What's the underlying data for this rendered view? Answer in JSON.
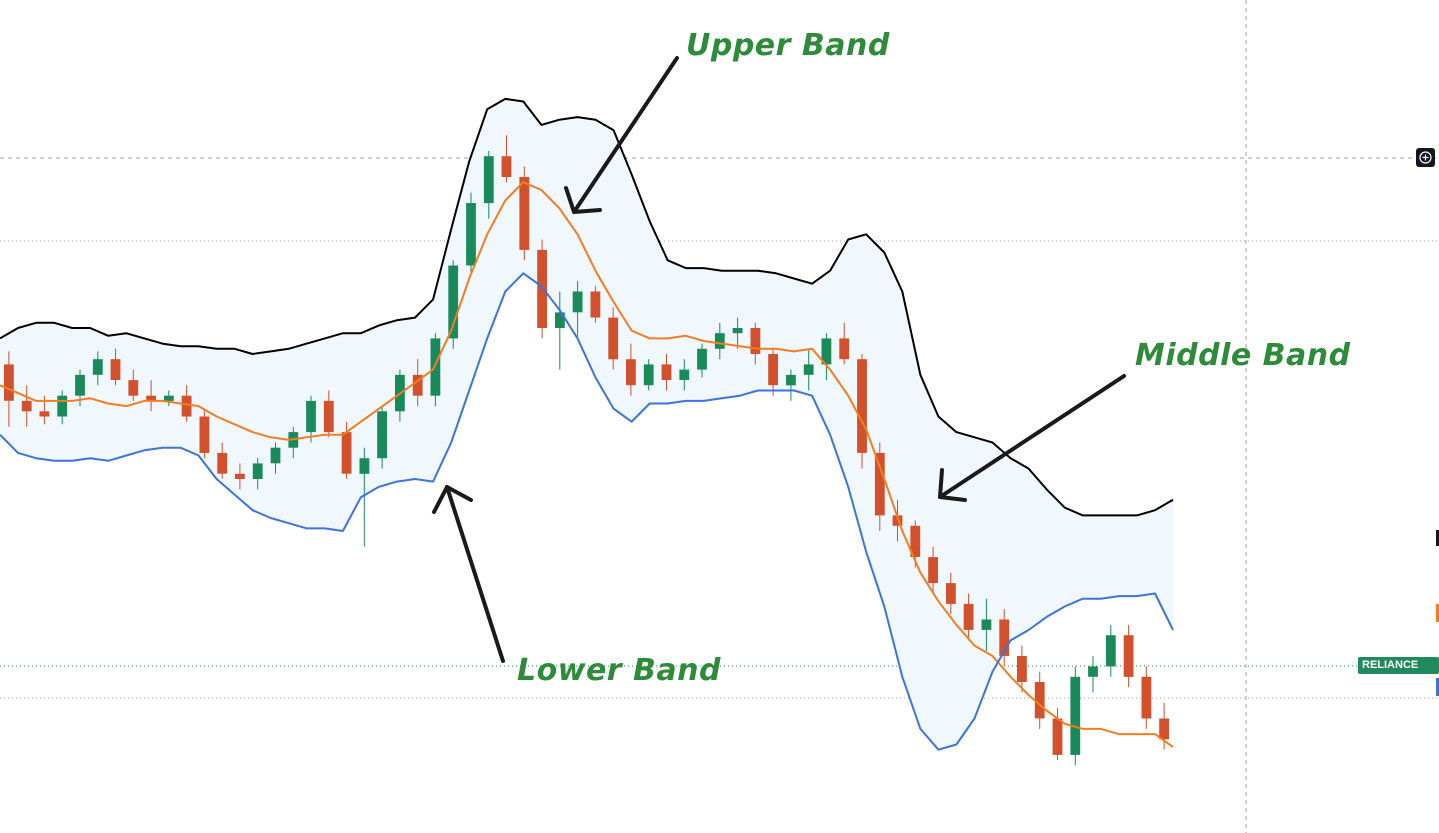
{
  "annotations": {
    "upper": "Upper Band",
    "middle": "Middle Band",
    "lower": "Lower Band"
  },
  "symbol_label": "RELIANCE EQ",
  "colors": {
    "upper_band": "#000000",
    "middle_band": "#f57c1f",
    "lower_band": "#3d73e0",
    "band_fill": "#f0f7fd",
    "up_candle": "#1b8a5a",
    "down_candle": "#d2502b",
    "annotation_text": "#2e8b3a",
    "symbol_tag_bg": "#1f8a5e"
  },
  "chart_data": {
    "type": "candlestick",
    "indicator": "bollinger-bands",
    "series": [
      {
        "name": "Upper Band",
        "values": [
          70,
          74,
          76,
          76,
          74,
          74,
          71,
          72,
          70,
          68,
          67,
          67,
          66,
          66,
          64,
          65,
          66,
          68,
          70,
          72,
          72,
          75,
          77,
          78,
          85,
          112,
          138,
          158,
          162,
          161,
          152,
          154,
          155,
          154,
          150,
          133,
          115,
          100,
          97,
          97,
          96,
          96,
          96,
          95,
          93,
          91,
          96,
          108,
          110,
          103,
          88,
          56,
          40,
          34,
          32,
          30,
          24,
          20,
          12,
          5,
          2,
          2,
          2,
          2,
          4,
          8
        ]
      },
      {
        "name": "Middle Band",
        "values": [
          52,
          49,
          46,
          46,
          46,
          47,
          45,
          44,
          46,
          46,
          45,
          44,
          40,
          37,
          34,
          32,
          31,
          32,
          33,
          33,
          38,
          43,
          48,
          53,
          58,
          73,
          93,
          110,
          123,
          130,
          127,
          120,
          110,
          96,
          84,
          73,
          70,
          70,
          71,
          69,
          68,
          67,
          66,
          66,
          65,
          66,
          58,
          48,
          35,
          16,
          -4,
          -20,
          -31,
          -40,
          -48,
          -52,
          -60,
          -67,
          -73,
          -78,
          -80,
          -80,
          -82,
          -82,
          -82,
          -87
        ]
      },
      {
        "name": "Lower Band",
        "values": [
          33,
          26,
          24,
          23,
          23,
          24,
          23,
          25,
          27,
          28,
          28,
          25,
          16,
          10,
          4,
          1,
          -1,
          -3,
          -3,
          -4,
          9,
          13,
          15,
          16,
          15,
          30,
          50,
          70,
          88,
          95,
          90,
          81,
          70,
          55,
          43,
          38,
          45,
          45,
          46,
          46,
          47,
          48,
          50,
          50,
          50,
          48,
          33,
          13,
          -12,
          -33,
          -60,
          -80,
          -88,
          -86,
          -76,
          -58,
          -46,
          -42,
          -37,
          -33,
          -30,
          -30,
          -29,
          -29,
          -28,
          -42
        ]
      }
    ],
    "candles": [
      [
        60,
        65,
        36,
        46
      ],
      [
        46,
        52,
        36,
        42
      ],
      [
        42,
        48,
        37,
        40
      ],
      [
        40,
        50,
        37,
        48
      ],
      [
        48,
        58,
        44,
        56
      ],
      [
        56,
        65,
        52,
        62
      ],
      [
        62,
        66,
        52,
        54
      ],
      [
        54,
        58,
        46,
        48
      ],
      [
        48,
        54,
        42,
        46
      ],
      [
        46,
        50,
        44,
        48
      ],
      [
        48,
        52,
        38,
        40
      ],
      [
        40,
        43,
        24,
        26
      ],
      [
        26,
        30,
        16,
        18
      ],
      [
        18,
        22,
        12,
        16
      ],
      [
        16,
        24,
        12,
        22
      ],
      [
        22,
        30,
        18,
        28
      ],
      [
        28,
        36,
        24,
        34
      ],
      [
        34,
        48,
        30,
        46
      ],
      [
        46,
        50,
        32,
        34
      ],
      [
        34,
        38,
        16,
        18
      ],
      [
        18,
        28,
        -10,
        24
      ],
      [
        24,
        44,
        20,
        42
      ],
      [
        42,
        58,
        38,
        56
      ],
      [
        56,
        62,
        44,
        48
      ],
      [
        48,
        72,
        44,
        70
      ],
      [
        70,
        100,
        66,
        98
      ],
      [
        98,
        126,
        94,
        122
      ],
      [
        122,
        142,
        116,
        140
      ],
      [
        140,
        148,
        130,
        132
      ],
      [
        132,
        136,
        100,
        104
      ],
      [
        104,
        108,
        70,
        74
      ],
      [
        74,
        88,
        58,
        80
      ],
      [
        80,
        92,
        70,
        88
      ],
      [
        88,
        90,
        76,
        78
      ],
      [
        78,
        82,
        58,
        62
      ],
      [
        62,
        68,
        48,
        52
      ],
      [
        52,
        62,
        50,
        60
      ],
      [
        60,
        64,
        50,
        54
      ],
      [
        54,
        62,
        50,
        58
      ],
      [
        58,
        68,
        55,
        66
      ],
      [
        66,
        76,
        62,
        72
      ],
      [
        72,
        78,
        66,
        74
      ],
      [
        74,
        76,
        60,
        64
      ],
      [
        64,
        66,
        48,
        52
      ],
      [
        52,
        58,
        46,
        56
      ],
      [
        56,
        66,
        50,
        60
      ],
      [
        60,
        72,
        54,
        70
      ],
      [
        70,
        76,
        60,
        62
      ],
      [
        62,
        64,
        20,
        26
      ],
      [
        26,
        30,
        -4,
        2
      ],
      [
        2,
        8,
        -8,
        -2
      ],
      [
        -2,
        0,
        -18,
        -14
      ],
      [
        -14,
        -10,
        -28,
        -24
      ],
      [
        -24,
        -20,
        -36,
        -32
      ],
      [
        -32,
        -28,
        -46,
        -42
      ],
      [
        -42,
        -30,
        -50,
        -38
      ],
      [
        -38,
        -34,
        -56,
        -52
      ],
      [
        -52,
        -48,
        -66,
        -62
      ],
      [
        -62,
        -58,
        -80,
        -76
      ],
      [
        -76,
        -72,
        -92,
        -90
      ],
      [
        -90,
        -56,
        -94,
        -60
      ],
      [
        -60,
        -52,
        -66,
        -56
      ],
      [
        -56,
        -40,
        -60,
        -44
      ],
      [
        -44,
        -40,
        -64,
        -60
      ],
      [
        -60,
        -56,
        -80,
        -76
      ],
      [
        -76,
        -70,
        -88,
        -84
      ]
    ],
    "yrange": [
      -120,
      200
    ],
    "grid": "horizontal dotted/dashed lines",
    "legend": "none"
  }
}
